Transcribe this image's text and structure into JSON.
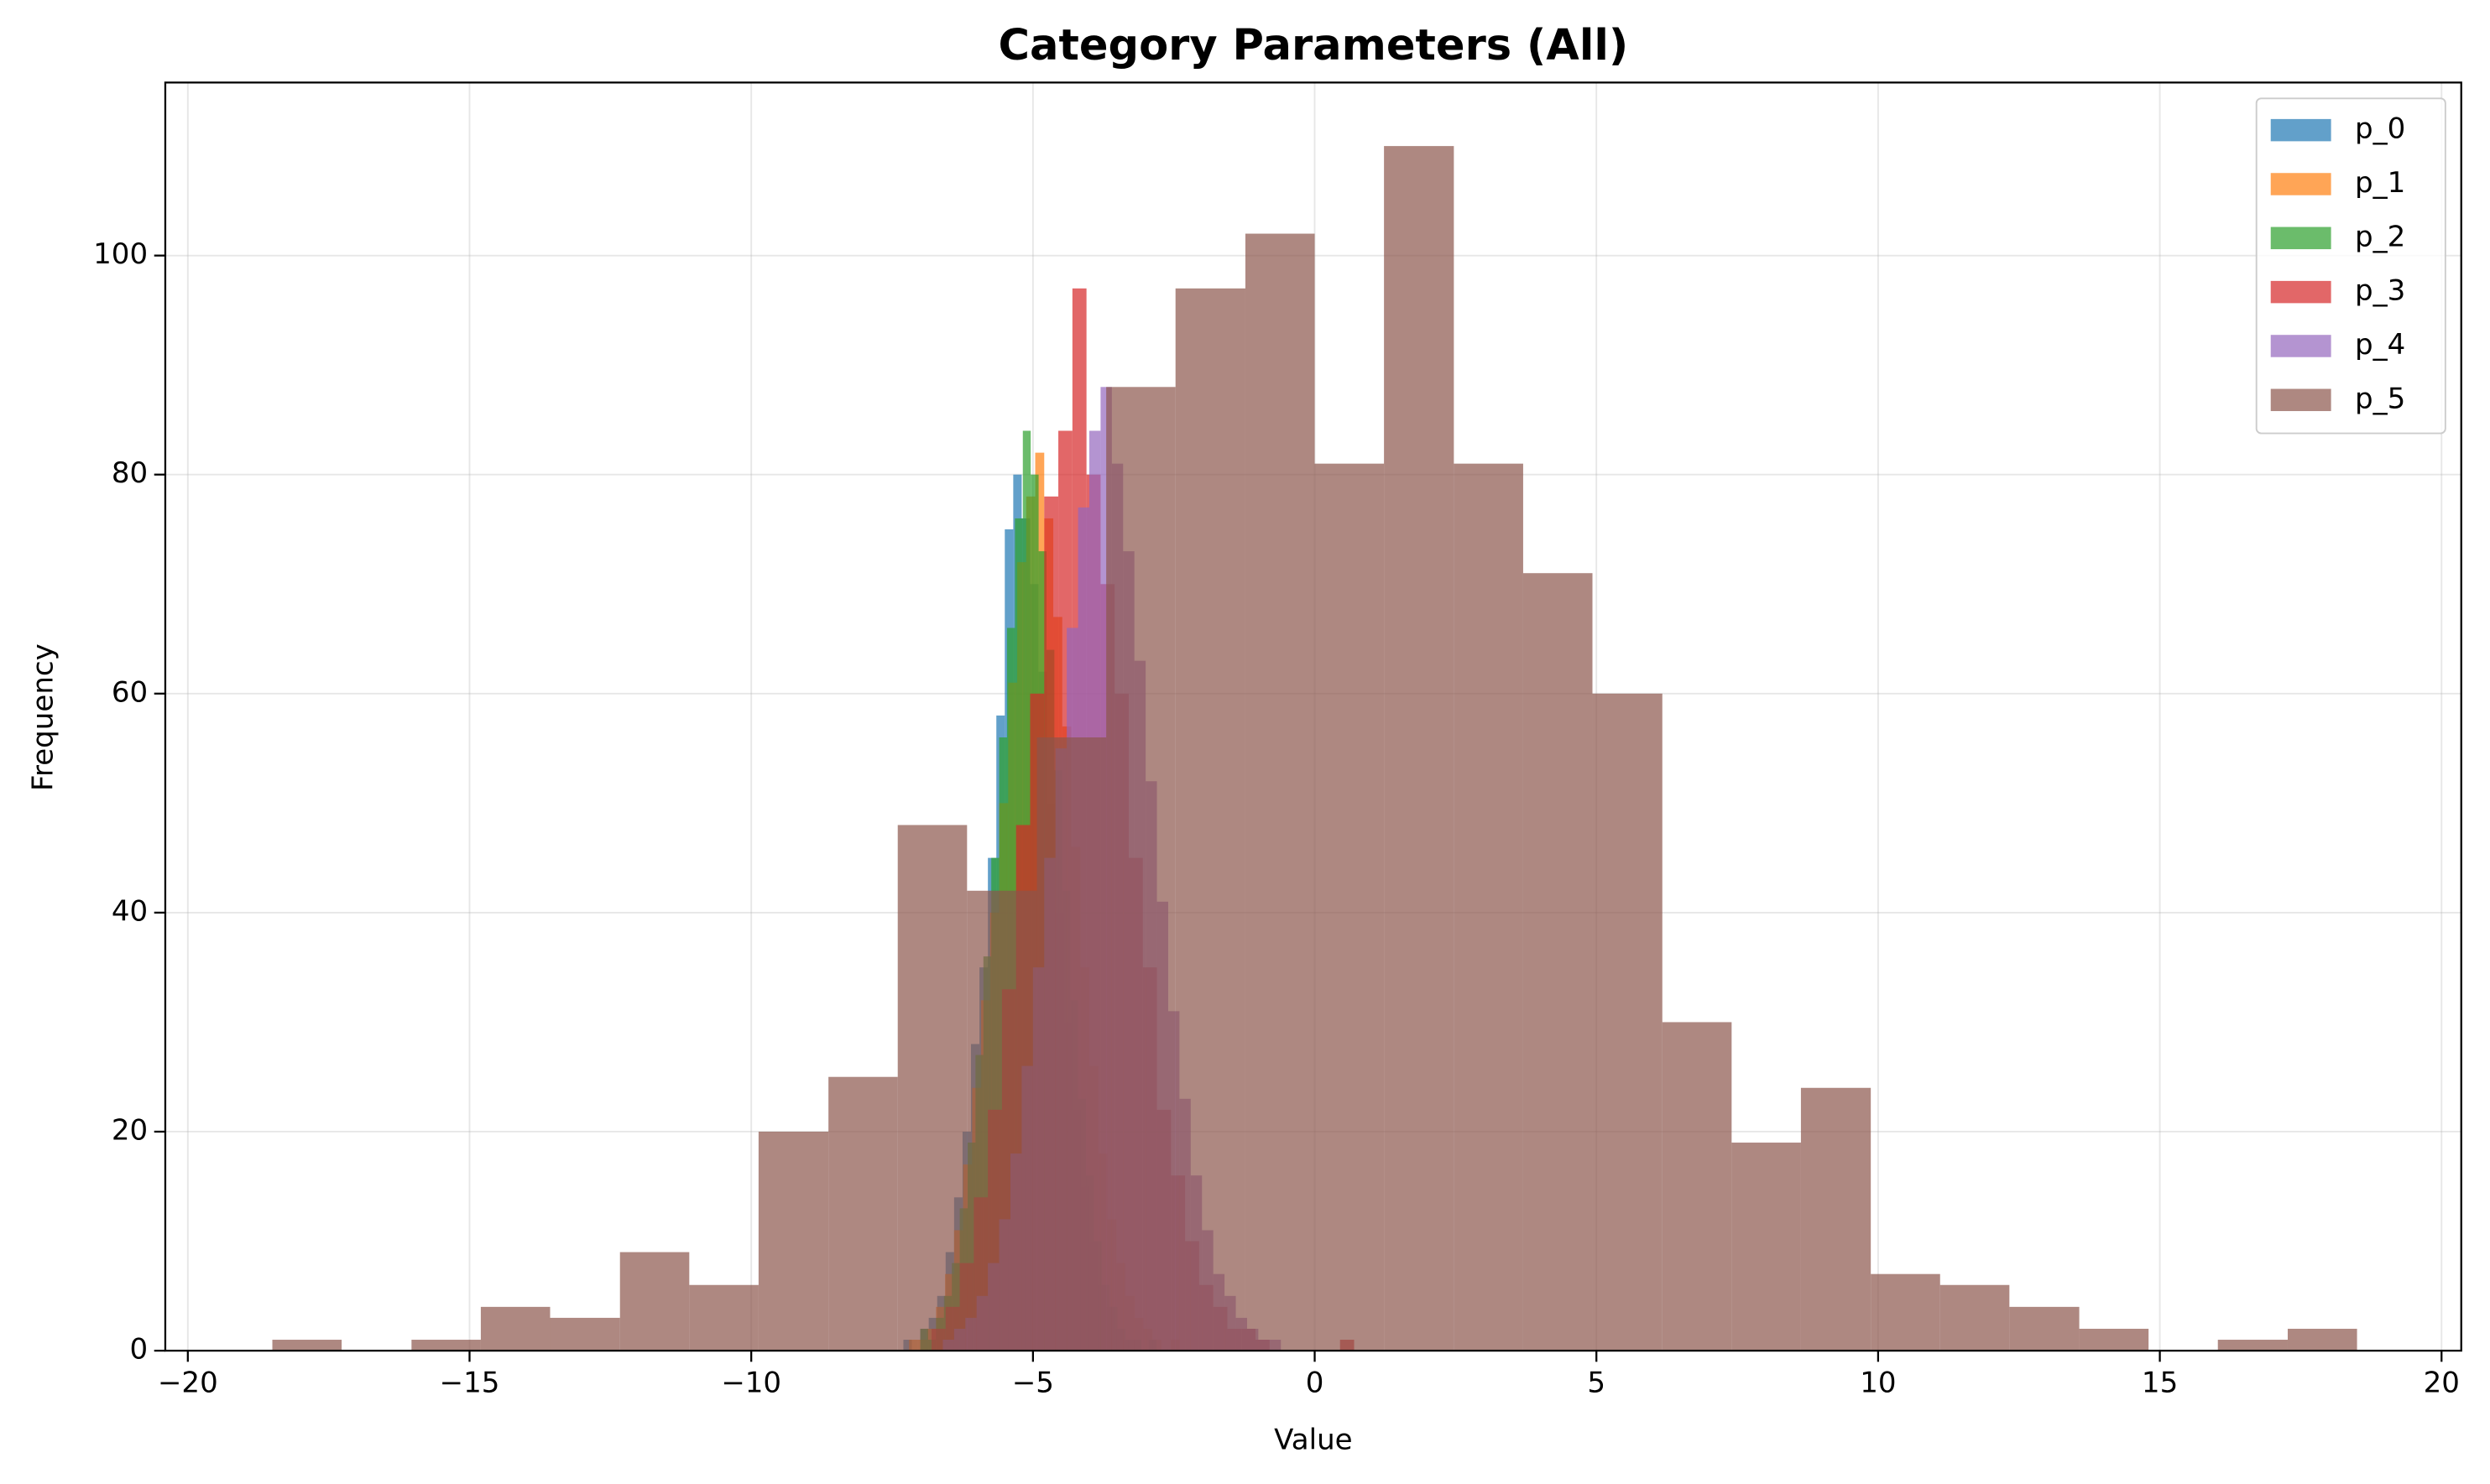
{
  "chart_data": {
    "type": "histogram",
    "title": "Category Parameters (All)",
    "x_label": "Value",
    "y_label": "Frequency",
    "xlim": [
      -20.4,
      20.35
    ],
    "ylim": [
      0,
      115.8
    ],
    "xticks": [
      {
        "value": -20,
        "label": "−20"
      },
      {
        "value": -15,
        "label": "−15"
      },
      {
        "value": -10,
        "label": "−10"
      },
      {
        "value": -5,
        "label": "−5"
      },
      0,
      5,
      10,
      15,
      20
    ],
    "yticks": [
      0,
      20,
      40,
      60,
      80,
      100
    ],
    "grid": true,
    "legend": "upper right",
    "alpha": 0.7,
    "series": [
      {
        "name": "p_0",
        "color": "#1f77b4",
        "bins": [
          -7.3,
          -7.15,
          -7.0,
          -6.85,
          -6.7,
          -6.55,
          -6.4,
          -6.25,
          -6.1,
          -5.95,
          -5.8,
          -5.65,
          -5.5,
          -5.35,
          -5.2,
          -5.05,
          -4.9,
          -4.75,
          -4.6,
          -4.45,
          -4.3,
          -4.15,
          -4.0,
          -3.85,
          -3.7,
          -3.55,
          -3.4,
          -3.25,
          -3.1,
          -2.95,
          -2.8
        ],
        "values": [
          1,
          0,
          2,
          3,
          5,
          9,
          14,
          20,
          28,
          35,
          45,
          58,
          75,
          80,
          76,
          70,
          62,
          50,
          40,
          30,
          22,
          15,
          10,
          6,
          4,
          2,
          1,
          1,
          0,
          1
        ]
      },
      {
        "name": "p_1",
        "color": "#ff7f0e",
        "bins": [
          -7.2,
          -7.04,
          -6.88,
          -6.72,
          -6.56,
          -6.4,
          -6.24,
          -6.08,
          -5.92,
          -5.76,
          -5.6,
          -5.44,
          -5.28,
          -5.12,
          -4.96,
          -4.8,
          -4.64,
          -4.48,
          -4.32,
          -4.16,
          -4.0,
          -3.84,
          -3.68,
          -3.52,
          -3.36,
          -3.2,
          -3.04,
          -2.88,
          -2.72,
          -2.56,
          -2.4
        ],
        "values": [
          1,
          1,
          2,
          4,
          7,
          11,
          17,
          24,
          32,
          40,
          50,
          61,
          72,
          78,
          82,
          76,
          67,
          57,
          46,
          35,
          26,
          18,
          12,
          8,
          5,
          3,
          2,
          1,
          0,
          1
        ]
      },
      {
        "name": "p_2",
        "color": "#2ca02c",
        "bins": [
          -7.0,
          -6.86,
          -6.72,
          -6.58,
          -6.44,
          -6.3,
          -6.16,
          -6.02,
          -5.88,
          -5.74,
          -5.6,
          -5.46,
          -5.32,
          -5.18,
          -5.04,
          -4.9,
          -4.76,
          -4.62,
          -4.48,
          -4.34,
          -4.2,
          -4.06,
          -3.92,
          -3.78,
          -3.64,
          -3.5,
          -3.36,
          -3.22,
          -3.08,
          -2.94,
          -2.8
        ],
        "values": [
          2,
          1,
          3,
          5,
          8,
          13,
          19,
          27,
          36,
          45,
          56,
          66,
          76,
          84,
          80,
          73,
          64,
          53,
          42,
          32,
          23,
          16,
          10,
          6,
          4,
          2,
          1,
          1,
          0,
          1
        ]
      },
      {
        "name": "p_3",
        "color": "#d62728",
        "bins": [
          -6.8,
          -6.55,
          -6.3,
          -6.05,
          -5.8,
          -5.55,
          -5.3,
          -5.05,
          -4.8,
          -4.55,
          -4.3,
          -4.05,
          -3.8,
          -3.55,
          -3.3,
          -3.05,
          -2.8,
          -2.55,
          -2.3,
          -2.05,
          -1.8,
          -1.55,
          -1.3,
          -1.05,
          -0.8,
          -0.55,
          -0.3,
          -0.05,
          0.2,
          0.45,
          0.7
        ],
        "values": [
          2,
          4,
          8,
          14,
          22,
          33,
          48,
          60,
          78,
          84,
          97,
          80,
          70,
          60,
          45,
          35,
          22,
          16,
          10,
          6,
          4,
          2,
          2,
          1,
          0,
          0,
          0,
          0,
          0,
          1
        ]
      },
      {
        "name": "p_4",
        "color": "#9467bd",
        "bins": [
          -6.6,
          -6.4,
          -6.2,
          -6.0,
          -5.8,
          -5.6,
          -5.4,
          -5.2,
          -5.0,
          -4.8,
          -4.6,
          -4.4,
          -4.2,
          -4.0,
          -3.8,
          -3.6,
          -3.4,
          -3.2,
          -3.0,
          -2.8,
          -2.6,
          -2.4,
          -2.2,
          -2.0,
          -1.8,
          -1.6,
          -1.4,
          -1.2,
          -1.0,
          -0.8,
          -0.6
        ],
        "values": [
          1,
          2,
          3,
          5,
          8,
          12,
          18,
          26,
          35,
          45,
          55,
          66,
          77,
          84,
          88,
          81,
          73,
          63,
          52,
          41,
          31,
          23,
          16,
          11,
          7,
          5,
          3,
          2,
          1,
          1
        ]
      },
      {
        "name": "p_5",
        "color": "#8c564b",
        "bins": [
          -18.5,
          -17.27,
          -16.03,
          -14.8,
          -13.57,
          -12.33,
          -11.1,
          -9.87,
          -8.63,
          -7.4,
          -6.17,
          -4.93,
          -3.7,
          -2.47,
          -1.23,
          0,
          1.23,
          2.47,
          3.7,
          4.93,
          6.17,
          7.4,
          8.63,
          9.87,
          11.1,
          12.33,
          13.57,
          14.8,
          16.03,
          17.27,
          18.5
        ],
        "values": [
          1,
          0,
          1,
          4,
          3,
          9,
          6,
          20,
          25,
          48,
          42,
          56,
          88,
          97,
          102,
          81,
          110,
          81,
          71,
          60,
          30,
          19,
          24,
          7,
          6,
          4,
          2,
          0,
          1,
          2
        ]
      }
    ]
  }
}
